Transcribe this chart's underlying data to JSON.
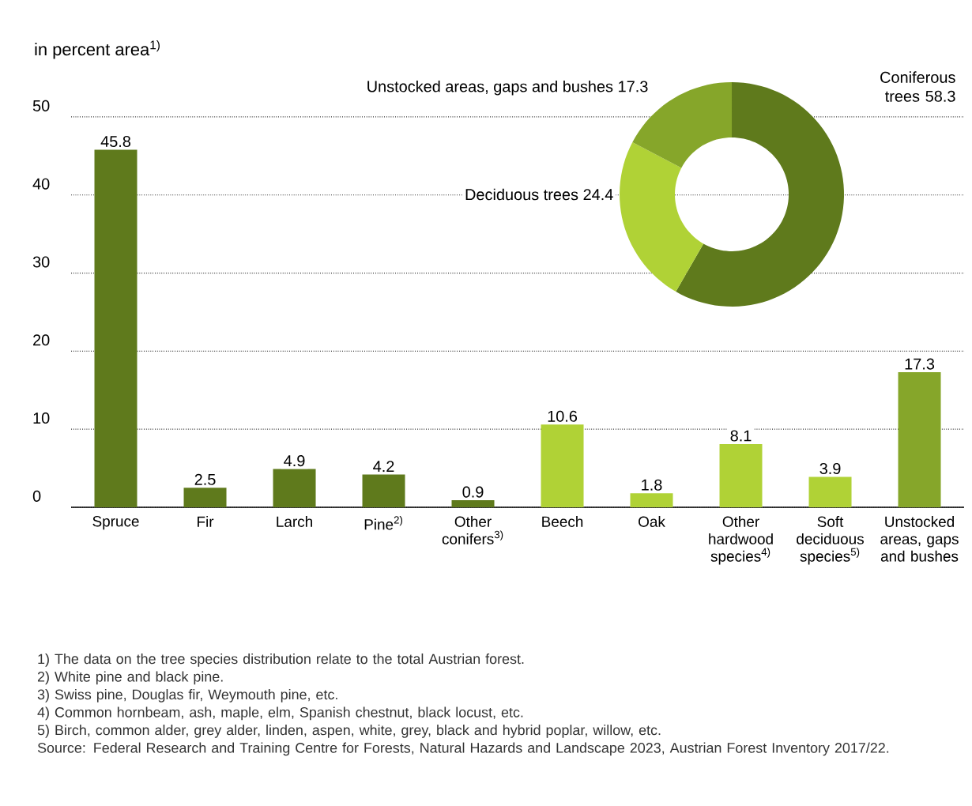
{
  "chart_data": [
    {
      "type": "bar",
      "ylabel": "in percent area$^{1)}$",
      "categories": [
        "Spruce",
        "Fir",
        "Larch",
        "Pine$^{2)}$",
        "Other conifers$^{3)}$",
        "Beech",
        "Oak",
        "Other hardwood species$^{4)}$",
        "Soft deciduous species$^{5)}$",
        "Unstocked areas, gaps and bushes"
      ],
      "values": [
        45.8,
        2.5,
        4.9,
        4.2,
        0.9,
        10.6,
        1.8,
        8.1,
        3.9,
        17.3
      ],
      "colors": [
        "#5f7a1c",
        "#5f7a1c",
        "#5f7a1c",
        "#5f7a1c",
        "#5f7a1c",
        "#b0d236",
        "#b0d236",
        "#b0d236",
        "#b0d236",
        "#86a62a"
      ],
      "ylim": [
        0,
        50
      ],
      "yticks": [
        0,
        10,
        20,
        30,
        40,
        50
      ],
      "grid": "y",
      "data_labels": true,
      "annotations": [
        "1) The data on the tree species distribution relate to the total Austrian forest.",
        "2) White pine and black pine.",
        "3) Swiss pine, Douglas fir, Weymouth pine, etc.",
        "4) Common hornbeam, ash, maple, elm, Spanish chestnut, black locust, etc.",
        "5) Birch, common alder, grey alder, linden, aspen, white, grey, black and hybrid poplar, willow, etc.",
        "Source: Federal Research and Training Centre for Forests, Natural Hazards and Landscape 2023, Austrian Forest Inventory 2017/22."
      ]
    },
    {
      "type": "donut",
      "categories": [
        "Coniferous trees",
        "Deciduous trees",
        "Unstocked areas, gaps and bushes"
      ],
      "values": [
        58.3,
        24.4,
        17.3
      ],
      "colors": [
        "#5f7a1c",
        "#b0d236",
        "#86a62a"
      ],
      "data_labels": true
    }
  ]
}
